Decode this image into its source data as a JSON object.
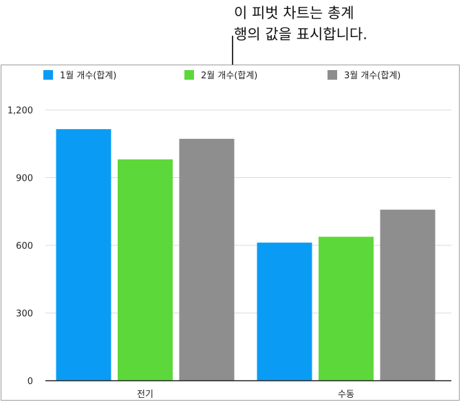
{
  "callout": {
    "line1": "이 피벗 차트는 총계",
    "line2": "행의 값을 표시합니다."
  },
  "colors": {
    "series1": "#0a9cf5",
    "series2": "#5dd83a",
    "series3": "#8e8e8e",
    "grid": "#d9d9d9",
    "axis": "#222222"
  },
  "chart_data": {
    "type": "bar",
    "categories": [
      "전기",
      "수동"
    ],
    "series": [
      {
        "name": "1월 개수(합계)",
        "values": [
          1115,
          612
        ]
      },
      {
        "name": "2월 개수(합계)",
        "values": [
          981,
          638
        ]
      },
      {
        "name": "3월 개수(합계)",
        "values": [
          1072,
          758
        ]
      }
    ],
    "title": "",
    "xlabel": "",
    "ylabel": "",
    "ylim": [
      0,
      1200
    ],
    "yticks": [
      0,
      300,
      600,
      900,
      1200
    ],
    "ytick_labels": [
      "0",
      "300",
      "600",
      "900",
      "1,200"
    ],
    "grid": true,
    "legend_position": "top"
  }
}
